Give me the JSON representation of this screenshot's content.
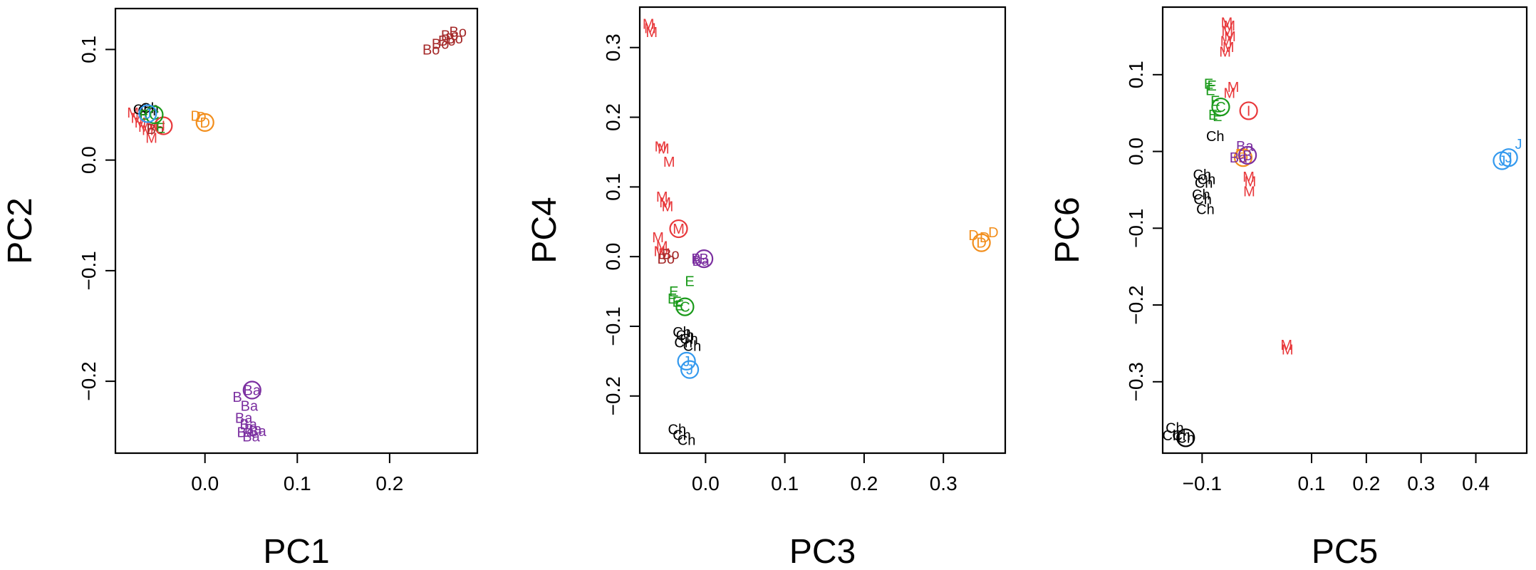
{
  "colors": {
    "M": "#e8383b",
    "Bo": "#a52a2a",
    "Ch": "#000000",
    "E": "#1a9a1a",
    "C": "#1a9a1a",
    "D": "#f28e1c",
    "Ba": "#7b2fa0",
    "B": "#7b2fa0",
    "J": "#3399ee",
    "I": "#e8383b"
  },
  "chart_data": [
    {
      "type": "scatter",
      "title": "",
      "xlabel": "PC1",
      "ylabel": "PC2",
      "xlim": [
        -0.097,
        0.295
      ],
      "ylim": [
        -0.265,
        0.137
      ],
      "xticks": [
        0.0,
        0.1,
        0.2
      ],
      "xtick_labels": [
        "0.0",
        "0.1",
        "0.2"
      ],
      "yticks": [
        -0.2,
        -0.1,
        0.0,
        0.1
      ],
      "ytick_labels": [
        "−0.2",
        "−0.1",
        "0.0",
        "0.1"
      ],
      "grid": false,
      "points": [
        {
          "x": 0.265,
          "y": 0.113,
          "label": "Bo",
          "group": "Bo"
        },
        {
          "x": 0.27,
          "y": 0.11,
          "label": "Bo",
          "group": "Bo"
        },
        {
          "x": 0.262,
          "y": 0.108,
          "label": "Bo",
          "group": "Bo"
        },
        {
          "x": 0.255,
          "y": 0.105,
          "label": "Bo",
          "group": "Bo"
        },
        {
          "x": 0.245,
          "y": 0.1,
          "label": "Bo",
          "group": "Bo"
        },
        {
          "x": 0.274,
          "y": 0.116,
          "label": "Bo",
          "group": "Bo"
        },
        {
          "x": -0.078,
          "y": 0.043,
          "label": "M",
          "group": "M"
        },
        {
          "x": -0.074,
          "y": 0.038,
          "label": "M",
          "group": "M"
        },
        {
          "x": -0.07,
          "y": 0.034,
          "label": "M",
          "group": "M"
        },
        {
          "x": -0.066,
          "y": 0.03,
          "label": "M",
          "group": "M"
        },
        {
          "x": -0.062,
          "y": 0.027,
          "label": "M",
          "group": "M"
        },
        {
          "x": -0.057,
          "y": 0.031,
          "label": "M",
          "group": "M"
        },
        {
          "x": -0.058,
          "y": 0.02,
          "label": "M",
          "group": "M"
        },
        {
          "x": -0.054,
          "y": 0.028,
          "label": "Bo",
          "group": "Bo"
        },
        {
          "x": -0.048,
          "y": 0.029,
          "label": "E",
          "group": "E"
        },
        {
          "x": -0.063,
          "y": 0.045,
          "label": "Ch",
          "group": "Ch"
        },
        {
          "x": -0.068,
          "y": 0.046,
          "label": "Ch",
          "group": "Ch"
        },
        {
          "x": -0.06,
          "y": 0.047,
          "label": "Ch",
          "group": "Ch"
        },
        {
          "x": -0.066,
          "y": 0.041,
          "label": "E",
          "group": "E"
        },
        {
          "x": -0.045,
          "y": 0.031,
          "label": "I",
          "group": "I",
          "circle": true
        },
        {
          "x": -0.055,
          "y": 0.041,
          "label": "C",
          "group": "C",
          "circle": true
        },
        {
          "x": -0.062,
          "y": 0.042,
          "label": "J",
          "group": "J",
          "circle": true
        },
        {
          "x": -0.01,
          "y": 0.04,
          "label": "D",
          "group": "D"
        },
        {
          "x": -0.004,
          "y": 0.039,
          "label": "D",
          "group": "D"
        },
        {
          "x": 0.0,
          "y": 0.034,
          "label": "D",
          "group": "D",
          "circle": true
        },
        {
          "x": 0.051,
          "y": -0.208,
          "label": "Ba",
          "group": "Ba",
          "circle": true
        },
        {
          "x": 0.035,
          "y": -0.214,
          "label": "B",
          "group": "B"
        },
        {
          "x": 0.048,
          "y": -0.222,
          "label": "Ba",
          "group": "Ba"
        },
        {
          "x": 0.042,
          "y": -0.233,
          "label": "Ba",
          "group": "Ba"
        },
        {
          "x": 0.047,
          "y": -0.239,
          "label": "Ba",
          "group": "Ba"
        },
        {
          "x": 0.052,
          "y": -0.243,
          "label": "Ba",
          "group": "Ba"
        },
        {
          "x": 0.044,
          "y": -0.246,
          "label": "Ba",
          "group": "Ba"
        },
        {
          "x": 0.057,
          "y": -0.245,
          "label": "Ba",
          "group": "Ba"
        },
        {
          "x": 0.05,
          "y": -0.25,
          "label": "Ba",
          "group": "Ba"
        }
      ]
    },
    {
      "type": "scatter",
      "title": "",
      "xlabel": "PC3",
      "ylabel": "PC4",
      "xlim": [
        -0.083,
        0.378
      ],
      "ylim": [
        -0.282,
        0.358
      ],
      "xticks": [
        0.0,
        0.1,
        0.2,
        0.3
      ],
      "xtick_labels": [
        "0.0",
        "0.1",
        "0.2",
        "0.3"
      ],
      "yticks": [
        -0.2,
        -0.1,
        0.0,
        0.1,
        0.2,
        0.3
      ],
      "ytick_labels": [
        "−0.2",
        "−0.1",
        "0.0",
        "0.1",
        "0.2",
        "0.3"
      ],
      "grid": false,
      "points": [
        {
          "x": -0.072,
          "y": 0.334,
          "label": "M",
          "group": "M"
        },
        {
          "x": -0.07,
          "y": 0.328,
          "label": "M",
          "group": "M"
        },
        {
          "x": -0.068,
          "y": 0.322,
          "label": "M",
          "group": "M"
        },
        {
          "x": -0.057,
          "y": 0.158,
          "label": "M",
          "group": "M"
        },
        {
          "x": -0.053,
          "y": 0.155,
          "label": "M",
          "group": "M"
        },
        {
          "x": -0.046,
          "y": 0.136,
          "label": "M",
          "group": "M"
        },
        {
          "x": -0.055,
          "y": 0.086,
          "label": "M",
          "group": "M"
        },
        {
          "x": -0.051,
          "y": 0.078,
          "label": "M",
          "group": "M"
        },
        {
          "x": -0.048,
          "y": 0.072,
          "label": "M",
          "group": "M"
        },
        {
          "x": -0.034,
          "y": 0.04,
          "label": "M",
          "group": "M",
          "circle": true
        },
        {
          "x": -0.06,
          "y": 0.028,
          "label": "M",
          "group": "M"
        },
        {
          "x": -0.055,
          "y": 0.015,
          "label": "M",
          "group": "M"
        },
        {
          "x": -0.058,
          "y": 0.008,
          "label": "M",
          "group": "M"
        },
        {
          "x": -0.052,
          "y": 0.005,
          "label": "M",
          "group": "M"
        },
        {
          "x": -0.05,
          "y": -0.003,
          "label": "Bo",
          "group": "Bo"
        },
        {
          "x": -0.044,
          "y": 0.004,
          "label": "Bo",
          "group": "Bo"
        },
        {
          "x": -0.012,
          "y": -0.003,
          "label": "B",
          "group": "B"
        },
        {
          "x": -0.006,
          "y": -0.006,
          "label": "Ba",
          "group": "Ba"
        },
        {
          "x": -0.002,
          "y": -0.003,
          "label": "B",
          "group": "B",
          "circle": true
        },
        {
          "x": -0.02,
          "y": -0.035,
          "label": "E",
          "group": "E"
        },
        {
          "x": -0.04,
          "y": -0.05,
          "label": "E",
          "group": "E"
        },
        {
          "x": -0.042,
          "y": -0.06,
          "label": "E",
          "group": "E"
        },
        {
          "x": -0.036,
          "y": -0.065,
          "label": "E",
          "group": "E"
        },
        {
          "x": -0.033,
          "y": -0.07,
          "label": "E",
          "group": "E"
        },
        {
          "x": -0.026,
          "y": -0.072,
          "label": "C",
          "group": "C",
          "circle": true
        },
        {
          "x": -0.03,
          "y": -0.108,
          "label": "Ch",
          "group": "Ch"
        },
        {
          "x": -0.026,
          "y": -0.113,
          "label": "Ch",
          "group": "Ch"
        },
        {
          "x": -0.021,
          "y": -0.118,
          "label": "Ch",
          "group": "Ch"
        },
        {
          "x": -0.028,
          "y": -0.123,
          "label": "Ch",
          "group": "Ch"
        },
        {
          "x": -0.017,
          "y": -0.128,
          "label": "Ch",
          "group": "Ch"
        },
        {
          "x": -0.024,
          "y": -0.15,
          "label": "J",
          "group": "J",
          "circle": true
        },
        {
          "x": -0.02,
          "y": -0.162,
          "label": "J",
          "group": "J",
          "circle": true
        },
        {
          "x": -0.036,
          "y": -0.248,
          "label": "Ch",
          "group": "Ch"
        },
        {
          "x": -0.03,
          "y": -0.256,
          "label": "Ch",
          "group": "Ch"
        },
        {
          "x": -0.024,
          "y": -0.263,
          "label": "Ch",
          "group": "Ch"
        },
        {
          "x": 0.338,
          "y": 0.031,
          "label": "D",
          "group": "D"
        },
        {
          "x": 0.352,
          "y": 0.028,
          "label": "D",
          "group": "D"
        },
        {
          "x": 0.363,
          "y": 0.035,
          "label": "D",
          "group": "D"
        },
        {
          "x": 0.348,
          "y": 0.02,
          "label": "D",
          "group": "D",
          "circle": true
        }
      ]
    },
    {
      "type": "scatter",
      "title": "",
      "xlabel": "PC5",
      "ylabel": "PC6",
      "xlim": [
        -0.172,
        0.493
      ],
      "ylim": [
        -0.393,
        0.188
      ],
      "xticks": [
        -0.1,
        0.1,
        0.2,
        0.3,
        0.4
      ],
      "xtick_labels": [
        "−0.1",
        "0.1",
        "0.2",
        "0.3",
        "0.4"
      ],
      "yticks": [
        -0.3,
        -0.2,
        -0.1,
        0.0,
        0.1
      ],
      "ytick_labels": [
        "−0.3",
        "−0.2",
        "−0.1",
        "0.0",
        "0.1"
      ],
      "grid": false,
      "points": [
        {
          "x": -0.055,
          "y": 0.168,
          "label": "M",
          "group": "M"
        },
        {
          "x": -0.05,
          "y": 0.164,
          "label": "M",
          "group": "M"
        },
        {
          "x": -0.054,
          "y": 0.157,
          "label": "M",
          "group": "M"
        },
        {
          "x": -0.049,
          "y": 0.15,
          "label": "M",
          "group": "M"
        },
        {
          "x": -0.056,
          "y": 0.144,
          "label": "M",
          "group": "M"
        },
        {
          "x": -0.052,
          "y": 0.136,
          "label": "M",
          "group": "M"
        },
        {
          "x": -0.058,
          "y": 0.13,
          "label": "M",
          "group": "M"
        },
        {
          "x": -0.043,
          "y": 0.084,
          "label": "M",
          "group": "M"
        },
        {
          "x": -0.05,
          "y": 0.076,
          "label": "M",
          "group": "M"
        },
        {
          "x": -0.088,
          "y": 0.088,
          "label": "E",
          "group": "E"
        },
        {
          "x": -0.082,
          "y": 0.086,
          "label": "E",
          "group": "E"
        },
        {
          "x": -0.085,
          "y": 0.08,
          "label": "E",
          "group": "E"
        },
        {
          "x": -0.076,
          "y": 0.066,
          "label": "E",
          "group": "E"
        },
        {
          "x": -0.08,
          "y": 0.048,
          "label": "E",
          "group": "E"
        },
        {
          "x": -0.072,
          "y": 0.046,
          "label": "E",
          "group": "E"
        },
        {
          "x": -0.066,
          "y": 0.058,
          "label": "C",
          "group": "C",
          "circle": true
        },
        {
          "x": -0.015,
          "y": 0.053,
          "label": "I",
          "group": "I",
          "circle": true
        },
        {
          "x": -0.076,
          "y": 0.02,
          "label": "Ch",
          "group": "Ch"
        },
        {
          "x": -0.022,
          "y": 0.007,
          "label": "Ba",
          "group": "Ba"
        },
        {
          "x": -0.03,
          "y": -0.003,
          "label": "D",
          "group": "D"
        },
        {
          "x": -0.025,
          "y": -0.008,
          "label": "D",
          "group": "D",
          "circle": true
        },
        {
          "x": -0.017,
          "y": -0.005,
          "label": "B",
          "group": "B",
          "circle": true
        },
        {
          "x": -0.034,
          "y": -0.008,
          "label": "Ba",
          "group": "Ba"
        },
        {
          "x": -0.015,
          "y": -0.033,
          "label": "M",
          "group": "M"
        },
        {
          "x": -0.012,
          "y": -0.039,
          "label": "M",
          "group": "M"
        },
        {
          "x": -0.014,
          "y": -0.052,
          "label": "M",
          "group": "M"
        },
        {
          "x": -0.1,
          "y": -0.03,
          "label": "Ch",
          "group": "Ch"
        },
        {
          "x": -0.092,
          "y": -0.036,
          "label": "Ch",
          "group": "Ch"
        },
        {
          "x": -0.097,
          "y": -0.041,
          "label": "Ch",
          "group": "Ch"
        },
        {
          "x": -0.102,
          "y": -0.056,
          "label": "Ch",
          "group": "Ch"
        },
        {
          "x": -0.099,
          "y": -0.062,
          "label": "Ch",
          "group": "Ch"
        },
        {
          "x": -0.094,
          "y": -0.075,
          "label": "Ch",
          "group": "Ch"
        },
        {
          "x": 0.054,
          "y": -0.252,
          "label": "M",
          "group": "M"
        },
        {
          "x": 0.056,
          "y": -0.258,
          "label": "M",
          "group": "M"
        },
        {
          "x": -0.15,
          "y": -0.36,
          "label": "Ch",
          "group": "Ch"
        },
        {
          "x": -0.156,
          "y": -0.37,
          "label": "Ch",
          "group": "Ch"
        },
        {
          "x": -0.138,
          "y": -0.37,
          "label": "Ch",
          "group": "Ch"
        },
        {
          "x": -0.13,
          "y": -0.373,
          "label": "Ch",
          "group": "Ch",
          "circle": true
        },
        {
          "x": 0.448,
          "y": -0.012,
          "label": "J",
          "group": "J",
          "circle": true
        },
        {
          "x": 0.46,
          "y": -0.008,
          "label": "J",
          "group": "J",
          "circle": true
        },
        {
          "x": 0.478,
          "y": 0.01,
          "label": "J",
          "group": "J"
        }
      ]
    }
  ]
}
